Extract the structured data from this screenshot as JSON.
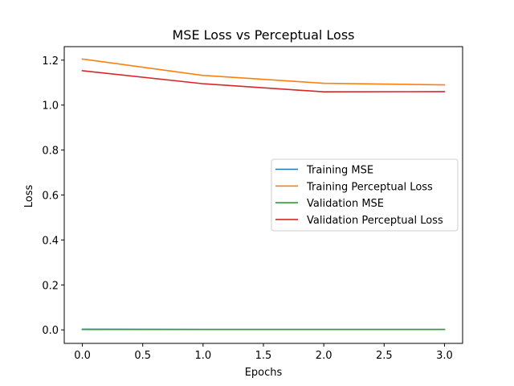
{
  "chart_data": {
    "type": "line",
    "title": "MSE Loss vs Perceptual Loss",
    "xlabel": "Epochs",
    "ylabel": "Loss",
    "xlim": [
      -0.15,
      3.15
    ],
    "ylim": [
      -0.06,
      1.26
    ],
    "xticks": [
      0.0,
      0.5,
      1.0,
      1.5,
      2.0,
      2.5,
      3.0
    ],
    "xtick_labels": [
      "0.0",
      "0.5",
      "1.0",
      "1.5",
      "2.0",
      "2.5",
      "3.0"
    ],
    "yticks": [
      0.0,
      0.2,
      0.4,
      0.6,
      0.8,
      1.0,
      1.2
    ],
    "ytick_labels": [
      "0.0",
      "0.2",
      "0.4",
      "0.6",
      "0.8",
      "1.0",
      "1.2"
    ],
    "grid": false,
    "legend_position": "center-right",
    "x": [
      0,
      1,
      2,
      3
    ],
    "series": [
      {
        "name": "Training MSE",
        "color": "#1f77b4",
        "values": [
          0.003,
          0.002,
          0.002,
          0.002
        ]
      },
      {
        "name": "Training Perceptual Loss",
        "color": "#ff7f0e",
        "values": [
          1.205,
          1.132,
          1.097,
          1.09
        ]
      },
      {
        "name": "Validation MSE",
        "color": "#2ca02c",
        "values": [
          0.002,
          0.002,
          0.002,
          0.002
        ]
      },
      {
        "name": "Validation Perceptual Loss",
        "color": "#d62728",
        "values": [
          1.153,
          1.095,
          1.059,
          1.06
        ]
      }
    ]
  }
}
